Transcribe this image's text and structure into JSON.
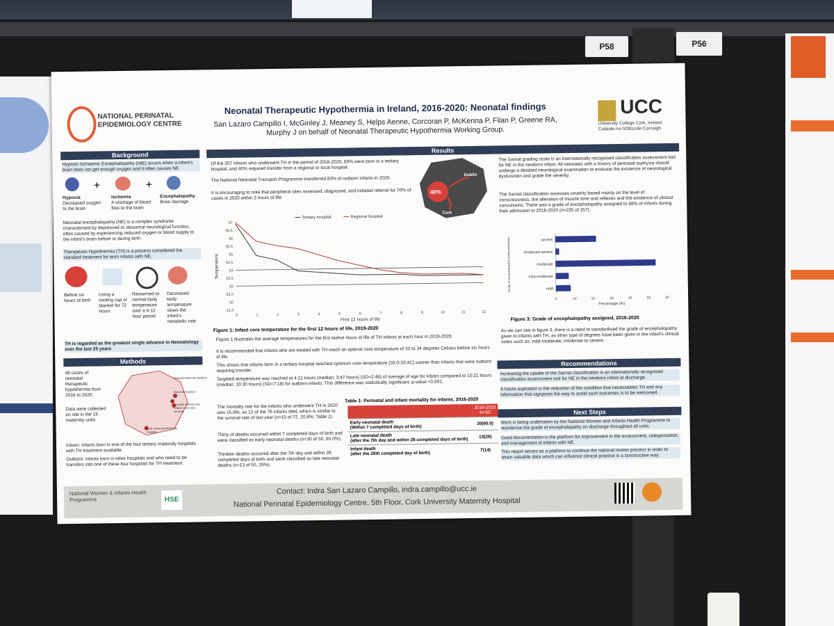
{
  "tags": {
    "left": "P58",
    "right": "P56"
  },
  "poster": {
    "title": "Neonatal Therapeutic Hypothermia in Ireland, 2016-2020: Neonatal findings",
    "authors_1": "San Lazaro Campillo I, McGinley J, Meaney S, Helps Aenne, Corcoran P, McKenna P, Filan P, Greene RA,",
    "authors_2": "Murphy J on behalf of Neonatal Therapeutic Hypothermia Working Group.",
    "logo_left_1": "NATIONAL PERINATAL",
    "logo_left_2": "EPIDEMIOLOGY CENTRE",
    "logo_right": "UCC",
    "logo_right_sub1": "University College Cork, Ireland",
    "logo_right_sub2": "Coláiste na hOllscoile Corcaigh"
  },
  "background": {
    "heading": "Background",
    "hie": "Hypoxic Ischaemic Encephalopathy (HIE) occurs when a infant's brain does not get enough oxygen and it often causes NE",
    "icon_labels": [
      "Hypoxia",
      "Ischemia",
      "Encephalopathy"
    ],
    "icon_desc": [
      "Decreased oxygen to the brain",
      "A shortage of blood flow to the brain",
      "Brain damage"
    ],
    "ne": "Neonatal encephalopathy (NE) is a complex syndrome characterised by depressed or abnormal neurological function, often caused by experiencing reduced oxygen or blood supply to the infant's brain before or during birth",
    "th": "Therapeutic Hypothermia (TH) is a process considered the standard treatment for term infants with NE.",
    "steps": [
      "Before six hours of birth",
      "Using a cooling cap or blanket for 72 hours",
      "Rewarmed to normal body temperature over a 6-12 hour period",
      "Decreased body temperature slows the infant's metabolic rate"
    ],
    "claim": "TH is regarded as the greatest single advance in Neonatology over the last 25 years"
  },
  "methods": {
    "heading": "Methods",
    "p1": "All cases of neonatal therapeutic hypothermia from 2016 to 2020.",
    "p2": "Data were collected on site in the 19 maternity units",
    "p3": "Inborn: infants born in one of the four tertiary maternity hospitals with TH treatment available",
    "p4": "Outborn: infants born in other hospitals and who need to be transfers into one of these four hospitals for TH treatment",
    "map_labels": [
      "National Maternity Hospital",
      "Rotunda Hospital",
      "Coombe Women and Infants University Hospital",
      "Cork University Maternity Hospital"
    ]
  },
  "results": {
    "heading": "Results",
    "b1": "Of the 357 infants who underwent TH in the period of 2016-2020, 60% were born in a tertiary hospital, and 40% required transfer from a regional or local hospital.",
    "b2": "The National Neonatal Transport Programme transferred 83% of outborn infants in 2020.",
    "b3": "It is encouraging to note that peripheral sites assessed, diagnosed, and initiated referral for 70% of cases in 2020 within 2 hours of life.",
    "map_pct": "40%",
    "map_cities": [
      "Dublin",
      "Cork"
    ],
    "fig1": "Figure 1: Infant core temperature for the first 12 hours of life, 2019-2020",
    "b4": "Figure 1 illustrates the average temperatures for the first twelve hours of life of TH infants at each hour in 2019-2020.",
    "b5": "It is recommended that infants who are treated with TH reach an optimal core temperature of 33 to 34 degrees Celsius before six hours of life.",
    "b6": "This shows that infants born in a tertiary hospital reached optimum core temperature (33.0-33.4C) sooner than infants that were outborn requiring transfer.",
    "b7": "Targeted temperature was reached at 4:12 hours (median: 3:47 hours) (SD=2:48) of average of age for inborn compared to 10:21 hours (median: 10:30 hours) (SD=7:18) for outborn infants. This difference was statistically significant, p-value <0.001.",
    "b8": "The mortality rate for the infants who underwent TH in 2020 was 15.8%, as 12 of the 76 infants died, which is similar to the survival rate of last year (n=15 of 72, 20.8%; Table 1).",
    "b9": "Thirty of deaths occurred within 7 completed days of birth and were classified as early neonatal deaths (n=30 of 50, 60.0%).",
    "b10": "Thirteen deaths occurred after the 7th day and within 28 completed days of birth and were classified as late neonatal deaths (n=13 of 50, 26%).",
    "table_title": "Table 1: Perinatal and infant mortality for infants, 2016-2020",
    "table_head_1": "2016-2020",
    "table_head_2": "N=50",
    "table_rows": [
      {
        "label": "Early neonatal death",
        "sub": "(Within 7 completed days of birth)",
        "value": "30(60.0)"
      },
      {
        "label": "Late neonatal death",
        "sub": "(after the 7th day and within 28 completed days of birth)",
        "value": "13(26)"
      },
      {
        "label": "Infant death",
        "sub": "(after the 28th completed day of birth)",
        "value": "7(14)"
      }
    ],
    "sarnat1": "The Sarnat grading scale is an internationally recognised classification assessment tool for NE in the newborn infant. All neonates with a history of perinatal asphyxia should undergo a detailed neurological examination to evaluate the existence of neurological dysfunction and grade the severity.",
    "sarnat2": "The Sarnat classification assesses severity based mainly on the level of consciousness, the alteration of muscle tone and reflexes and the existence of clinical convulsions. There was a grade of encephalopathy assigned to 66% of infants during their admission in 2016-2020 (n=235 of 357).",
    "fig3": "Figure 3: Grade of encephalopathy assigned, 2016-2020",
    "fig3_note": "As we can see in figure 3, there is a need to standardised the grade of encephalopathy given to infants with TH, as other type of degrees have been given in the infant's clinical notes such as: mild-moderate, moderate to severe."
  },
  "chart_data": [
    {
      "type": "line",
      "xlabel": "First 12 hours of life",
      "ylabel": "Temperature",
      "x": [
        0,
        1,
        2,
        3,
        4,
        5,
        6,
        7,
        8,
        9,
        10,
        11,
        12
      ],
      "ylim": [
        31.5,
        37
      ],
      "series": [
        {
          "name": "Tertiary hospital",
          "values": [
            36.9,
            34.9,
            34.6,
            33.9,
            33.8,
            33.7,
            33.6,
            33.6,
            33.6,
            33.5,
            33.5,
            33.5,
            33.5
          ]
        },
        {
          "name": "Regional hospital",
          "values": [
            37.0,
            35.8,
            35.5,
            35.3,
            34.9,
            34.5,
            34.2,
            33.9,
            33.7,
            33.6,
            33.6,
            33.6,
            33.5
          ]
        }
      ],
      "legend": "top"
    },
    {
      "type": "bar",
      "orientation": "horizontal",
      "title": "",
      "xlabel": "Percentage (%)",
      "ylabel": "Grade of encephalopathy during admission",
      "categories": [
        "severe",
        "moderate-severe",
        "moderate",
        "mild-moderate",
        "mild"
      ],
      "values": [
        22,
        2,
        54,
        7,
        8
      ],
      "xlim": [
        0,
        60
      ],
      "xticks": [
        0,
        10,
        20,
        30,
        40,
        50,
        60
      ]
    }
  ],
  "recommendations": {
    "heading": "Recommendations",
    "r1": "Increasing the uptake of the Sarnat classification is an internationally recognised classification assessment tool for NE in the newborn infant at discharge.",
    "r2": "A future aspiration is the reduction of the condition that necessitates TH and any information that signposts the way to avoid such outcomes is to be welcomed."
  },
  "next_steps": {
    "heading": "Next Steps",
    "n1": "Work is being undertaken by the National Women and Infants Health Programme to standarise the grade of encephalopathy on discharge throughout all units.",
    "n2": "Good documentation is the platform for improvement in the assessment, categorisation, and management of infants with NE.",
    "n3": "This report serves as a platform to continue the national review process in order to attain valuable data which can influence clinical practice in a constructive way."
  },
  "footer": {
    "contact": "Contact: Indra San Lazaro Campillo, indra.campillo@ucc.ie",
    "address": "National Perinatal Epidemiology Centre, 5th Floor, Cork University Maternity Hospital",
    "logo_nwihp": "National Women & Infants Health Programme",
    "logo_hse": "HSE"
  },
  "colors": {
    "navy": "#2f3e56",
    "accent": "#d4442a",
    "bar": "#2f3a8a",
    "tertiary_line": "#3b3b3b",
    "regional_line": "#b33a3a"
  }
}
